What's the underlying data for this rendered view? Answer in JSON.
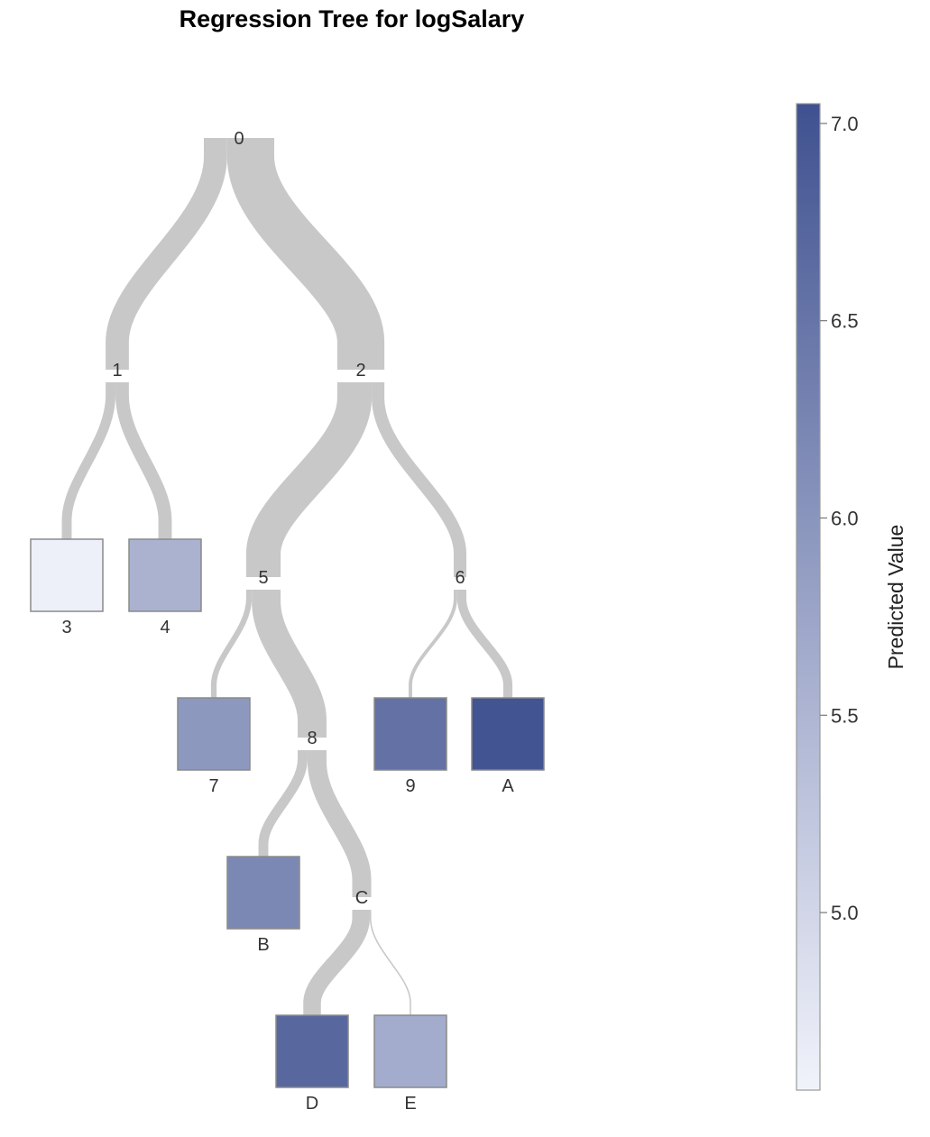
{
  "chart_data": {
    "type": "regression-tree",
    "title": "Regression Tree for logSalary",
    "colorbar": {
      "title": "Predicted Value",
      "min": 4.55,
      "max": 7.05,
      "ticks": [
        7.0,
        6.5,
        6.0,
        5.5,
        5.0
      ],
      "tick_labels": [
        "7.0",
        "6.5",
        "6.0",
        "5.5",
        "5.0"
      ],
      "color_low": "#f1f3fb",
      "color_high": "#3f5190"
    },
    "nodes": [
      {
        "id": "0",
        "label": "0",
        "kind": "split"
      },
      {
        "id": "1",
        "label": "1",
        "kind": "split"
      },
      {
        "id": "2",
        "label": "2",
        "kind": "split"
      },
      {
        "id": "3",
        "label": "3",
        "kind": "leaf",
        "value": 4.6
      },
      {
        "id": "4",
        "label": "4",
        "kind": "leaf",
        "value": 5.55
      },
      {
        "id": "5",
        "label": "5",
        "kind": "split"
      },
      {
        "id": "6",
        "label": "6",
        "kind": "split"
      },
      {
        "id": "7",
        "label": "7",
        "kind": "leaf",
        "value": 5.95
      },
      {
        "id": "8",
        "label": "8",
        "kind": "split"
      },
      {
        "id": "9",
        "label": "9",
        "kind": "leaf",
        "value": 6.55
      },
      {
        "id": "A",
        "label": "A",
        "kind": "leaf",
        "value": 7.0
      },
      {
        "id": "B",
        "label": "B",
        "kind": "leaf",
        "value": 6.2
      },
      {
        "id": "C",
        "label": "C",
        "kind": "split"
      },
      {
        "id": "D",
        "label": "D",
        "kind": "leaf",
        "value": 6.7
      },
      {
        "id": "E",
        "label": "E",
        "kind": "leaf",
        "value": 5.65
      }
    ],
    "edges": [
      {
        "from": "0",
        "to": "1",
        "weight": 0.33
      },
      {
        "from": "0",
        "to": "2",
        "weight": 0.67
      },
      {
        "from": "1",
        "to": "3",
        "weight": 0.14
      },
      {
        "from": "1",
        "to": "4",
        "weight": 0.19
      },
      {
        "from": "2",
        "to": "5",
        "weight": 0.49
      },
      {
        "from": "2",
        "to": "6",
        "weight": 0.18
      },
      {
        "from": "5",
        "to": "7",
        "weight": 0.08
      },
      {
        "from": "5",
        "to": "8",
        "weight": 0.41
      },
      {
        "from": "6",
        "to": "9",
        "weight": 0.05
      },
      {
        "from": "6",
        "to": "A",
        "weight": 0.13
      },
      {
        "from": "8",
        "to": "B",
        "weight": 0.14
      },
      {
        "from": "8",
        "to": "C",
        "weight": 0.27
      },
      {
        "from": "C",
        "to": "D",
        "weight": 0.25
      },
      {
        "from": "C",
        "to": "E",
        "weight": 0.02
      }
    ]
  }
}
